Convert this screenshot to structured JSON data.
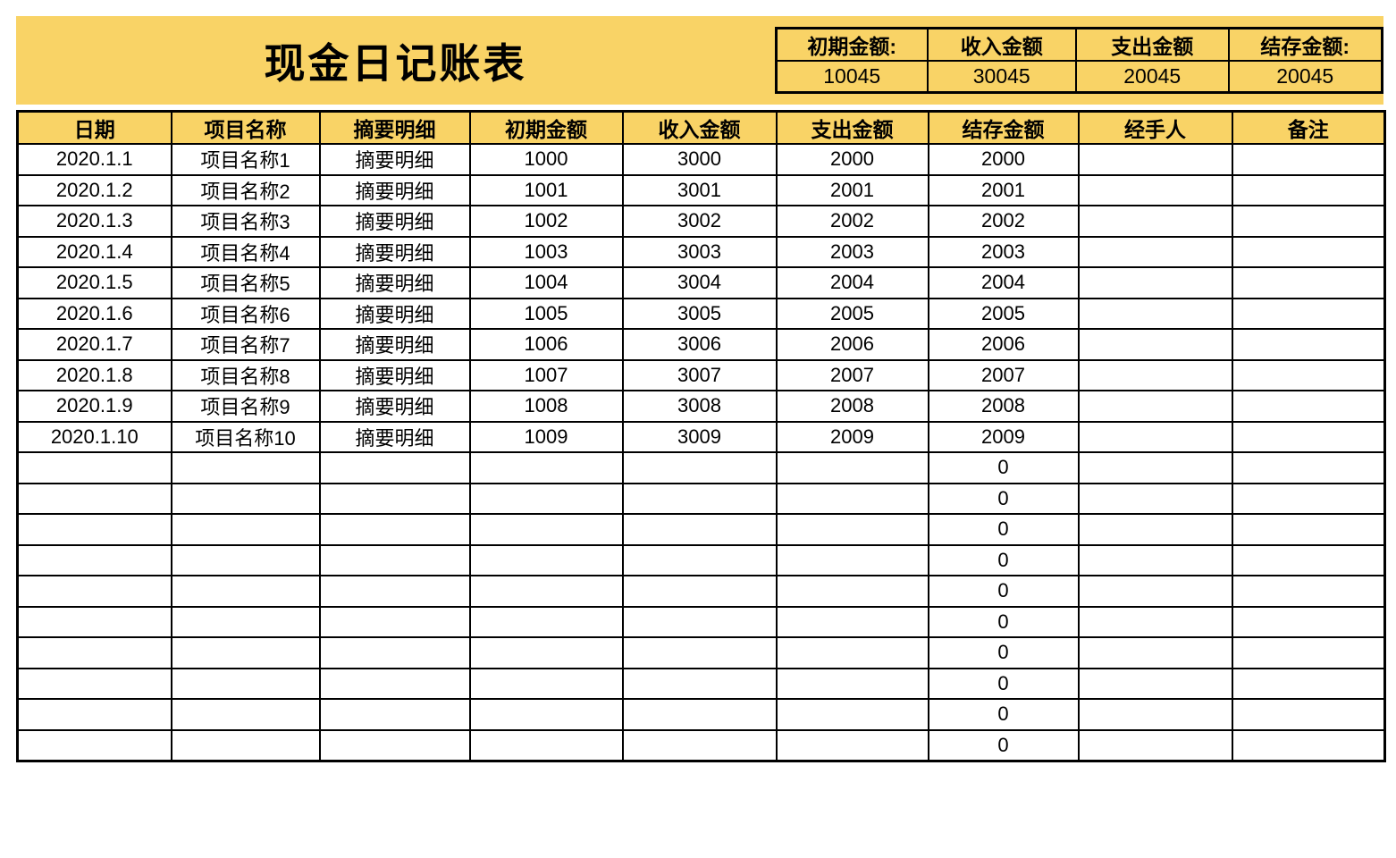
{
  "page": {
    "title": "现金日记账表"
  },
  "summary": {
    "cards": [
      {
        "label": "初期金额:",
        "value": "10045"
      },
      {
        "label": "收入金额",
        "value": "30045"
      },
      {
        "label": "支出金额",
        "value": "20045"
      },
      {
        "label": "结存金额:",
        "value": "20045"
      }
    ]
  },
  "table": {
    "headers": [
      "日期",
      "项目名称",
      "摘要明细",
      "初期金额",
      "收入金额",
      "支出金额",
      "结存金额",
      "经手人",
      "备注"
    ],
    "rows": [
      [
        "2020.1.1",
        "项目名称1",
        "摘要明细",
        "1000",
        "3000",
        "2000",
        "2000",
        "",
        ""
      ],
      [
        "2020.1.2",
        "项目名称2",
        "摘要明细",
        "1001",
        "3001",
        "2001",
        "2001",
        "",
        ""
      ],
      [
        "2020.1.3",
        "项目名称3",
        "摘要明细",
        "1002",
        "3002",
        "2002",
        "2002",
        "",
        ""
      ],
      [
        "2020.1.4",
        "项目名称4",
        "摘要明细",
        "1003",
        "3003",
        "2003",
        "2003",
        "",
        ""
      ],
      [
        "2020.1.5",
        "项目名称5",
        "摘要明细",
        "1004",
        "3004",
        "2004",
        "2004",
        "",
        ""
      ],
      [
        "2020.1.6",
        "项目名称6",
        "摘要明细",
        "1005",
        "3005",
        "2005",
        "2005",
        "",
        ""
      ],
      [
        "2020.1.7",
        "项目名称7",
        "摘要明细",
        "1006",
        "3006",
        "2006",
        "2006",
        "",
        ""
      ],
      [
        "2020.1.8",
        "项目名称8",
        "摘要明细",
        "1007",
        "3007",
        "2007",
        "2007",
        "",
        ""
      ],
      [
        "2020.1.9",
        "项目名称9",
        "摘要明细",
        "1008",
        "3008",
        "2008",
        "2008",
        "",
        ""
      ],
      [
        "2020.1.10",
        "项目名称10",
        "摘要明细",
        "1009",
        "3009",
        "2009",
        "2009",
        "",
        ""
      ],
      [
        "",
        "",
        "",
        "",
        "",
        "",
        "0",
        "",
        ""
      ],
      [
        "",
        "",
        "",
        "",
        "",
        "",
        "0",
        "",
        ""
      ],
      [
        "",
        "",
        "",
        "",
        "",
        "",
        "0",
        "",
        ""
      ],
      [
        "",
        "",
        "",
        "",
        "",
        "",
        "0",
        "",
        ""
      ],
      [
        "",
        "",
        "",
        "",
        "",
        "",
        "0",
        "",
        ""
      ],
      [
        "",
        "",
        "",
        "",
        "",
        "",
        "0",
        "",
        ""
      ],
      [
        "",
        "",
        "",
        "",
        "",
        "",
        "0",
        "",
        ""
      ],
      [
        "",
        "",
        "",
        "",
        "",
        "",
        "0",
        "",
        ""
      ],
      [
        "",
        "",
        "",
        "",
        "",
        "",
        "0",
        "",
        ""
      ],
      [
        "",
        "",
        "",
        "",
        "",
        "",
        "0",
        "",
        ""
      ]
    ]
  },
  "colors": {
    "band_yellow": "#F9D366",
    "border_black": "#000000",
    "text_black": "#000000",
    "cell_white": "#FFFFFF"
  }
}
